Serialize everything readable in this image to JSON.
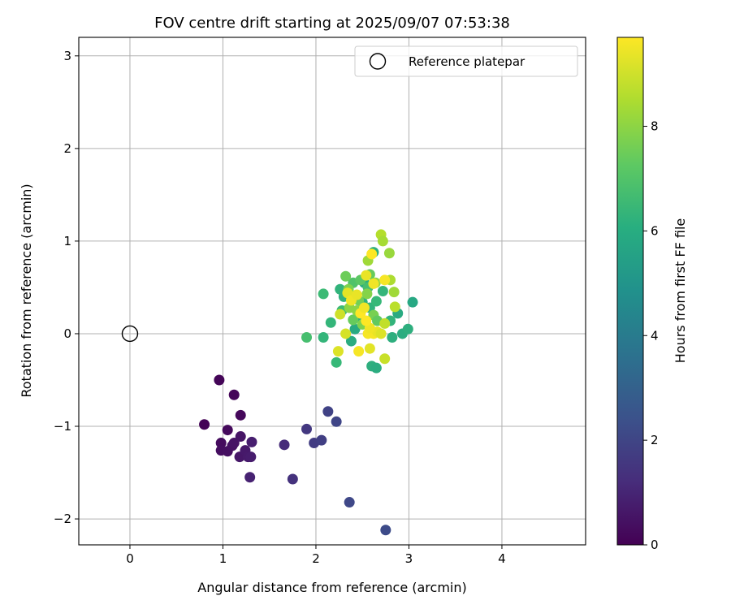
{
  "chart_data": {
    "type": "scatter",
    "title": "FOV centre drift starting at 2025/09/07 07:53:38",
    "xlabel": "Angular distance from reference (arcmin)",
    "ylabel": "Rotation from reference (arcmin)",
    "xlim": [
      -0.55,
      4.9
    ],
    "ylim": [
      -2.28,
      3.2
    ],
    "xticks": [
      0,
      1,
      2,
      3,
      4
    ],
    "yticks": [
      -2,
      -1,
      0,
      1,
      2,
      3
    ],
    "xtick_labels": [
      "0",
      "1",
      "2",
      "3",
      "4"
    ],
    "ytick_labels": [
      "−2",
      "−1",
      "0",
      "1",
      "2",
      "3"
    ],
    "grid": true,
    "legend": {
      "label": "Reference platepar",
      "placement": "top-right",
      "marker": "open circle"
    },
    "reference_point": {
      "x": 0,
      "y": 0
    },
    "colorbar": {
      "label": "Hours from first FF file",
      "colormap": "viridis",
      "range": [
        0,
        9.7
      ],
      "ticks": [
        0,
        2,
        4,
        6,
        8
      ],
      "tick_labels": [
        "0",
        "2",
        "4",
        "6",
        "8"
      ]
    },
    "points": [
      {
        "x": 0.8,
        "y": -0.98,
        "c": 0.05
      },
      {
        "x": 0.96,
        "y": -0.5,
        "c": 0.1
      },
      {
        "x": 1.12,
        "y": -0.66,
        "c": 0.15
      },
      {
        "x": 1.19,
        "y": -0.88,
        "c": 0.2
      },
      {
        "x": 1.05,
        "y": -1.04,
        "c": 0.25
      },
      {
        "x": 0.98,
        "y": -1.18,
        "c": 0.3
      },
      {
        "x": 0.98,
        "y": -1.26,
        "c": 0.35
      },
      {
        "x": 1.05,
        "y": -1.27,
        "c": 0.4
      },
      {
        "x": 1.1,
        "y": -1.21,
        "c": 0.45
      },
      {
        "x": 1.12,
        "y": -1.18,
        "c": 0.5
      },
      {
        "x": 1.19,
        "y": -1.11,
        "c": 0.55
      },
      {
        "x": 1.18,
        "y": -1.33,
        "c": 0.6
      },
      {
        "x": 1.24,
        "y": -1.26,
        "c": 0.65
      },
      {
        "x": 1.27,
        "y": -1.33,
        "c": 0.7
      },
      {
        "x": 1.3,
        "y": -1.33,
        "c": 0.75
      },
      {
        "x": 1.31,
        "y": -1.17,
        "c": 0.8
      },
      {
        "x": 1.29,
        "y": -1.55,
        "c": 0.9
      },
      {
        "x": 1.66,
        "y": -1.2,
        "c": 1.2
      },
      {
        "x": 1.75,
        "y": -1.57,
        "c": 1.4
      },
      {
        "x": 1.9,
        "y": -1.03,
        "c": 1.6
      },
      {
        "x": 1.98,
        "y": -1.18,
        "c": 1.7
      },
      {
        "x": 2.06,
        "y": -1.15,
        "c": 1.8
      },
      {
        "x": 2.13,
        "y": -0.84,
        "c": 1.9
      },
      {
        "x": 2.22,
        "y": -0.95,
        "c": 2.0
      },
      {
        "x": 2.36,
        "y": -1.82,
        "c": 2.1
      },
      {
        "x": 2.75,
        "y": -2.12,
        "c": 2.2
      },
      {
        "x": 1.9,
        "y": -0.04,
        "c": 6.8
      },
      {
        "x": 2.08,
        "y": -0.04,
        "c": 6.4
      },
      {
        "x": 2.08,
        "y": 0.43,
        "c": 6.6
      },
      {
        "x": 2.16,
        "y": 0.12,
        "c": 6.4
      },
      {
        "x": 2.22,
        "y": -0.31,
        "c": 6.5
      },
      {
        "x": 2.26,
        "y": 0.48,
        "c": 6.3
      },
      {
        "x": 2.3,
        "y": 0.4,
        "c": 6.2
      },
      {
        "x": 2.28,
        "y": 0.25,
        "c": 6.6
      },
      {
        "x": 2.38,
        "y": -0.08,
        "c": 6.0
      },
      {
        "x": 2.42,
        "y": 0.05,
        "c": 5.9
      },
      {
        "x": 2.45,
        "y": 0.18,
        "c": 6.1
      },
      {
        "x": 2.5,
        "y": 0.34,
        "c": 6.2
      },
      {
        "x": 2.52,
        "y": 0.55,
        "c": 6.0
      },
      {
        "x": 2.58,
        "y": 0.28,
        "c": 6.3
      },
      {
        "x": 2.6,
        "y": -0.35,
        "c": 6.1
      },
      {
        "x": 2.65,
        "y": -0.37,
        "c": 6.0
      },
      {
        "x": 2.62,
        "y": 0.88,
        "c": 6.2
      },
      {
        "x": 2.65,
        "y": 0.35,
        "c": 6.5
      },
      {
        "x": 2.72,
        "y": 0.46,
        "c": 6.4
      },
      {
        "x": 2.8,
        "y": 0.14,
        "c": 6.3
      },
      {
        "x": 2.82,
        "y": -0.04,
        "c": 6.1
      },
      {
        "x": 2.88,
        "y": 0.22,
        "c": 5.9
      },
      {
        "x": 2.93,
        "y": 0.0,
        "c": 6.0
      },
      {
        "x": 2.99,
        "y": 0.05,
        "c": 6.1
      },
      {
        "x": 3.04,
        "y": 0.34,
        "c": 5.8
      },
      {
        "x": 2.56,
        "y": 0.5,
        "c": 6.8
      },
      {
        "x": 2.4,
        "y": 0.55,
        "c": 7.0
      },
      {
        "x": 2.32,
        "y": 0.62,
        "c": 7.5
      },
      {
        "x": 2.35,
        "y": 0.48,
        "c": 7.8
      },
      {
        "x": 2.36,
        "y": 0.28,
        "c": 8.0
      },
      {
        "x": 2.4,
        "y": 0.15,
        "c": 7.4
      },
      {
        "x": 2.46,
        "y": 0.36,
        "c": 7.6
      },
      {
        "x": 2.48,
        "y": 0.58,
        "c": 7.2
      },
      {
        "x": 2.55,
        "y": 0.43,
        "c": 7.9
      },
      {
        "x": 2.56,
        "y": 0.79,
        "c": 8.3
      },
      {
        "x": 2.58,
        "y": 0.64,
        "c": 7.4
      },
      {
        "x": 2.62,
        "y": 0.2,
        "c": 7.7
      },
      {
        "x": 2.64,
        "y": 0.55,
        "c": 8.1
      },
      {
        "x": 2.66,
        "y": 0.14,
        "c": 7.3
      },
      {
        "x": 2.7,
        "y": 1.07,
        "c": 8.6
      },
      {
        "x": 2.72,
        "y": 1.0,
        "c": 8.4
      },
      {
        "x": 2.74,
        "y": 0.11,
        "c": 8.8
      },
      {
        "x": 2.74,
        "y": -0.27,
        "c": 8.9
      },
      {
        "x": 2.79,
        "y": 0.87,
        "c": 8.2
      },
      {
        "x": 2.8,
        "y": 0.58,
        "c": 8.5
      },
      {
        "x": 2.84,
        "y": 0.45,
        "c": 8.3
      },
      {
        "x": 2.85,
        "y": 0.29,
        "c": 8.7
      },
      {
        "x": 2.5,
        "y": 0.1,
        "c": 7.8
      },
      {
        "x": 2.44,
        "y": 0.25,
        "c": 8.0
      },
      {
        "x": 2.26,
        "y": 0.21,
        "c": 9.0
      },
      {
        "x": 2.24,
        "y": -0.19,
        "c": 9.2
      },
      {
        "x": 2.32,
        "y": 0.0,
        "c": 9.1
      },
      {
        "x": 2.34,
        "y": 0.44,
        "c": 9.3
      },
      {
        "x": 2.38,
        "y": 0.36,
        "c": 9.5
      },
      {
        "x": 2.44,
        "y": 0.42,
        "c": 9.4
      },
      {
        "x": 2.46,
        "y": -0.19,
        "c": 9.6
      },
      {
        "x": 2.48,
        "y": 0.22,
        "c": 9.7
      },
      {
        "x": 2.52,
        "y": 0.28,
        "c": 9.5
      },
      {
        "x": 2.54,
        "y": 0.63,
        "c": 9.4
      },
      {
        "x": 2.56,
        "y": 0.0,
        "c": 9.6
      },
      {
        "x": 2.58,
        "y": -0.16,
        "c": 9.3
      },
      {
        "x": 2.6,
        "y": 0.86,
        "c": 9.7
      },
      {
        "x": 2.62,
        "y": 0.54,
        "c": 9.5
      },
      {
        "x": 2.62,
        "y": 0.0,
        "c": 9.6
      },
      {
        "x": 2.66,
        "y": 0.02,
        "c": 9.4
      },
      {
        "x": 2.7,
        "y": 0.0,
        "c": 9.2
      },
      {
        "x": 2.74,
        "y": 0.58,
        "c": 9.6
      },
      {
        "x": 2.58,
        "y": 0.06,
        "c": 9.5
      },
      {
        "x": 2.54,
        "y": 0.14,
        "c": 9.7
      }
    ]
  }
}
